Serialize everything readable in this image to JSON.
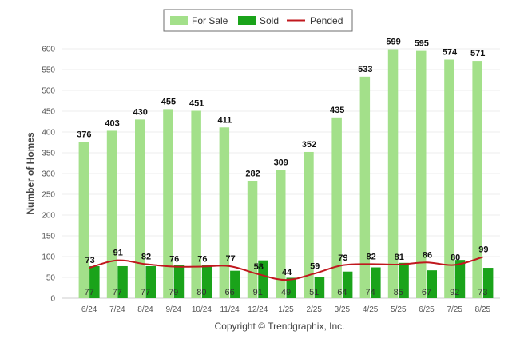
{
  "chart_data": {
    "type": "bar",
    "categories": [
      "6/24",
      "7/24",
      "8/24",
      "9/24",
      "10/24",
      "11/24",
      "12/24",
      "1/25",
      "2/25",
      "3/25",
      "4/25",
      "5/25",
      "6/25",
      "7/25",
      "8/25"
    ],
    "series": [
      {
        "name": "For Sale",
        "kind": "bar",
        "color": "#a3e08a",
        "values": [
          376,
          403,
          430,
          455,
          451,
          411,
          282,
          309,
          352,
          435,
          533,
          599,
          595,
          574,
          571
        ]
      },
      {
        "name": "Sold",
        "kind": "bar",
        "color": "#1aa31a",
        "values": [
          77,
          77,
          77,
          79,
          80,
          66,
          91,
          49,
          51,
          64,
          74,
          85,
          67,
          92,
          73
        ]
      },
      {
        "name": "Pended",
        "kind": "line",
        "color": "#c0181e",
        "values": [
          73,
          91,
          82,
          76,
          76,
          77,
          58,
          44,
          59,
          79,
          82,
          81,
          86,
          80,
          99
        ]
      }
    ],
    "title": "",
    "xlabel": "",
    "ylabel": "Number of Homes",
    "ylim": [
      0,
      600
    ],
    "yticks": [
      0,
      50,
      100,
      150,
      200,
      250,
      300,
      350,
      400,
      450,
      500,
      550,
      600
    ],
    "grid": true,
    "legend_position": "top-center"
  },
  "footer": {
    "copyright": "Copyright © Trendgraphix, Inc."
  }
}
